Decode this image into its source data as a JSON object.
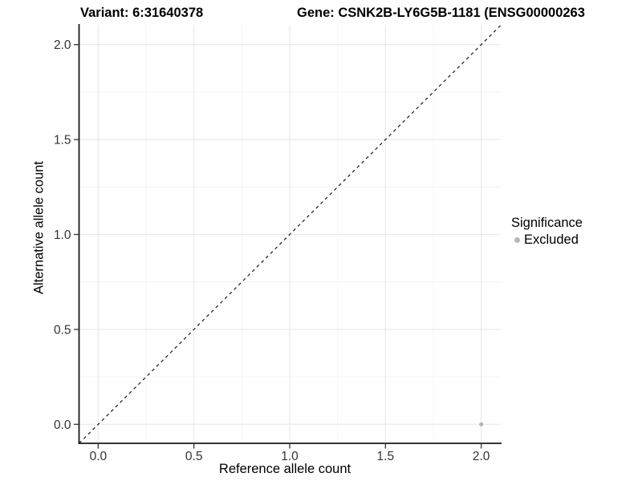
{
  "chart_data": {
    "type": "scatter",
    "titles": {
      "left": "Variant: 6:31640378",
      "right": "Gene: CSNK2B-LY6G5B-1181 (ENSG00000263"
    },
    "xlabel": "Reference allele count",
    "ylabel": "Alternative allele count",
    "xlim": [
      -0.1,
      2.1
    ],
    "ylim": [
      -0.1,
      2.1
    ],
    "x_ticks": [
      0,
      0.5,
      1,
      1.5,
      2
    ],
    "x_tick_labels": [
      "0.0",
      "0.5",
      "1.0",
      "1.5",
      "2.0"
    ],
    "y_ticks": [
      0,
      0.5,
      1,
      1.5,
      2
    ],
    "y_tick_labels": [
      "0.0",
      "0.5",
      "1.0",
      "1.5",
      "2.0"
    ],
    "grid": {
      "major": true,
      "minor": true
    },
    "reference_line": {
      "type": "identity",
      "style": "dashed"
    },
    "series": [
      {
        "name": "Excluded",
        "color": "#b5b5b5",
        "points": [
          {
            "x": 2,
            "y": 0
          }
        ]
      }
    ],
    "legend": {
      "title": "Significance",
      "position": "right",
      "items": [
        {
          "label": "Excluded",
          "color": "#b5b5b5",
          "marker": "circle"
        }
      ]
    },
    "colors": {
      "point": "#b5b5b5",
      "grid_major": "#e8e8e8",
      "grid_minor": "#f4f4f4",
      "axis": "#1a1a1a",
      "tick_mark": "#333333",
      "tick_label": "#333333",
      "reference_line": "#1a1a1a"
    }
  }
}
